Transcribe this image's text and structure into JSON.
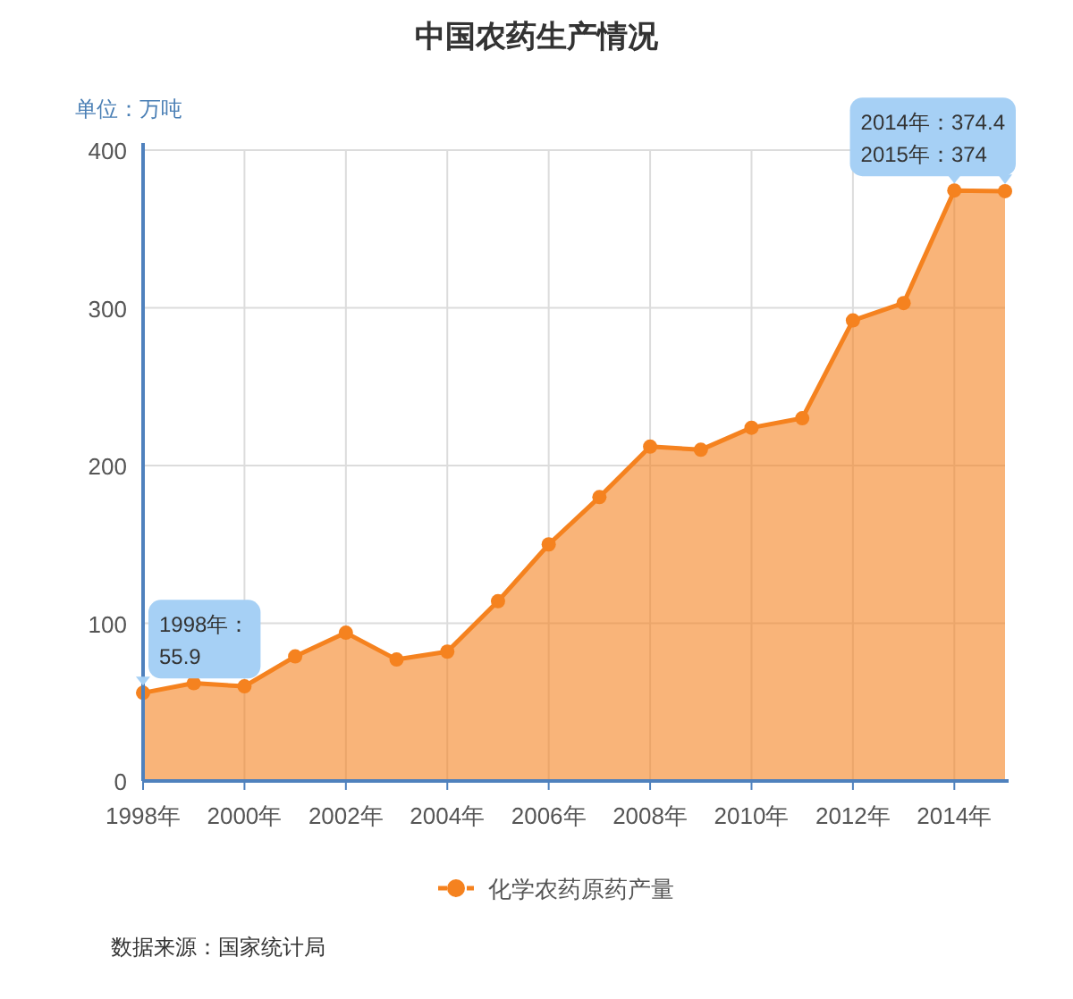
{
  "chart_data": {
    "type": "area",
    "title": "中国农药生产情况",
    "ylabel": "单位：万吨",
    "x": [
      1998,
      1999,
      2000,
      2001,
      2002,
      2003,
      2004,
      2005,
      2006,
      2007,
      2008,
      2009,
      2010,
      2011,
      2012,
      2013,
      2014,
      2015
    ],
    "series": [
      {
        "name": "化学农药原药产量",
        "color": "#f5821f",
        "values": [
          55.9,
          62,
          60,
          79,
          94,
          77,
          82,
          114,
          150,
          180,
          212,
          210,
          224,
          230,
          292,
          303,
          374.4,
          374
        ]
      }
    ],
    "xlim": [
      1998,
      2015
    ],
    "ylim": [
      0,
      400
    ],
    "xticks": [
      {
        "value": 1998,
        "label": "1998年"
      },
      {
        "value": 2000,
        "label": "2000年"
      },
      {
        "value": 2002,
        "label": "2002年"
      },
      {
        "value": 2004,
        "label": "2004年"
      },
      {
        "value": 2006,
        "label": "2006年"
      },
      {
        "value": 2008,
        "label": "2008年"
      },
      {
        "value": 2010,
        "label": "2010年"
      },
      {
        "value": 2012,
        "label": "2012年"
      },
      {
        "value": 2014,
        "label": "2014年"
      }
    ],
    "yticks": [
      0,
      100,
      200,
      300,
      400
    ],
    "grid": true,
    "legend": "bottom",
    "marker": "circle",
    "annotations": [
      {
        "text": "1998年：55.9",
        "x": 1998,
        "y": 55.9
      },
      {
        "text": "2014年：374.4",
        "x": 2014,
        "y": 374.4
      },
      {
        "text": "2015年：374",
        "x": 2015,
        "y": 374
      },
      "数据来源：国家统计局"
    ]
  }
}
